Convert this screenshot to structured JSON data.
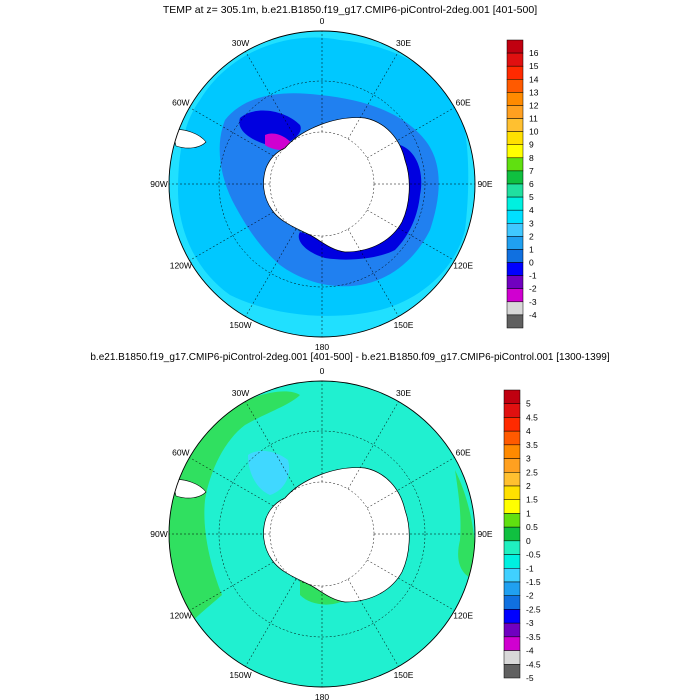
{
  "panels": [
    {
      "title": "TEMP at z= 305.1m, b.e21.B1850.f19_g17.CMIP6-piControl-2deg.001 [401-500]",
      "lon_labels": [
        "0",
        "30E",
        "60E",
        "90E",
        "120E",
        "150E",
        "180",
        "150W",
        "120W",
        "90W",
        "60W",
        "30W"
      ],
      "colorbar_labels": [
        "16",
        "15",
        "14",
        "13",
        "12",
        "11",
        "10",
        "9",
        "8",
        "7",
        "6",
        "5",
        "4",
        "3",
        "2",
        "1",
        "0",
        "-1",
        "-2",
        "-3",
        "-4"
      ],
      "colorbar_colors": [
        "#c00010",
        "#e01010",
        "#ff2a00",
        "#ff5a00",
        "#ff8a00",
        "#ffa020",
        "#ffc030",
        "#ffe000",
        "#ffff00",
        "#60e010",
        "#10c040",
        "#20e0a0",
        "#00f0e0",
        "#00e0ff",
        "#40c8ff",
        "#20a0f0",
        "#1070e0",
        "#0000ff",
        "#7000c0",
        "#d000d0",
        "#d8d8d8",
        "#606060"
      ]
    },
    {
      "title": "b.e21.B1850.f19_g17.CMIP6-piControl-2deg.001 [401-500] - b.e21.B1850.f09_g17.CMIP6-piControl.001 [1300-1399]",
      "lon_labels": [
        "0",
        "30E",
        "60E",
        "90E",
        "120E",
        "150E",
        "180",
        "150W",
        "120W",
        "90W",
        "60W",
        "30W"
      ],
      "colorbar_labels": [
        "5",
        "4.5",
        "4",
        "3.5",
        "3",
        "2.5",
        "2",
        "1.5",
        "1",
        "0.5",
        "0",
        "-0.5",
        "-1",
        "-1.5",
        "-2",
        "-2.5",
        "-3",
        "-3.5",
        "-4",
        "-4.5",
        "-5"
      ],
      "colorbar_colors": [
        "#c00010",
        "#e01010",
        "#ff2a00",
        "#ff5a00",
        "#ff8a00",
        "#ffa020",
        "#ffc030",
        "#ffe000",
        "#ffff00",
        "#60e010",
        "#10c040",
        "#20f0c0",
        "#00f0e0",
        "#40d0ff",
        "#20a0f0",
        "#1070e0",
        "#0000ff",
        "#7000c0",
        "#d000d0",
        "#d8d8d8",
        "#606060"
      ]
    }
  ],
  "colors": {
    "land": "#ffffff",
    "panel1_ocean_outer": "#20e0ff",
    "panel1_ocean_mid": "#00c8ff",
    "panel1_ocean_inner": "#2080f0",
    "panel1_shelf_cold": "#0000e0",
    "panel1_shelf_coldest": "#d000d0",
    "panel2_ocean": "#20f0d0",
    "panel2_warm": "#30e060",
    "panel2_cool": "#40d8ff"
  }
}
